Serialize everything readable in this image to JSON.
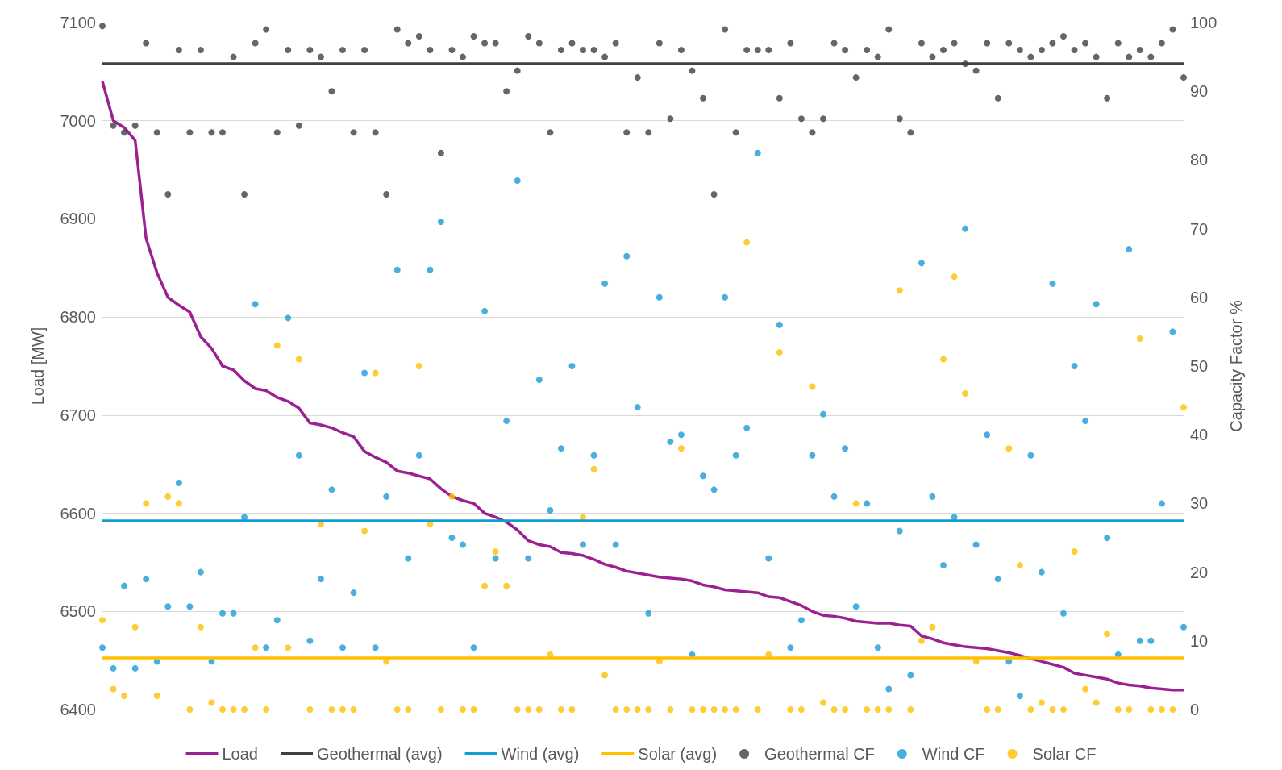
{
  "chart_data": {
    "type": "line",
    "ylabel": "Load [MW]",
    "y2label": "Capacity Factor %",
    "categories": [
      null,
      null,
      null,
      null,
      null,
      null,
      null,
      null,
      null,
      null,
      null,
      null,
      null,
      null,
      null,
      null,
      null,
      null,
      null,
      null,
      null,
      null,
      null,
      null,
      null,
      null,
      null,
      null,
      null,
      null,
      null,
      null,
      null,
      null,
      null,
      null,
      null,
      null,
      null,
      null,
      null,
      null,
      null,
      null,
      null,
      null,
      null,
      null,
      null,
      null,
      null,
      null,
      null,
      null,
      null,
      null,
      null,
      null,
      null,
      null,
      null,
      null,
      null,
      null,
      null,
      null,
      null,
      null,
      null,
      null,
      null,
      null,
      null,
      null,
      null,
      null,
      null,
      null,
      null,
      null,
      null,
      null,
      null,
      null,
      null,
      null,
      null,
      null,
      null,
      null,
      null,
      null,
      null,
      null,
      null,
      null,
      null,
      null,
      null,
      null
    ],
    "ylim": [
      6400,
      7100
    ],
    "yticks": [
      6400,
      6500,
      6600,
      6700,
      6800,
      6900,
      7000,
      7100
    ],
    "y2lim": [
      0,
      100
    ],
    "y2ticks": [
      0,
      10,
      20,
      30,
      40,
      50,
      60,
      70,
      80,
      90,
      100
    ],
    "grid": "y",
    "legend": "bottom",
    "series": [
      {
        "name": "Load",
        "color": "#9b2192",
        "marker": "none",
        "values": [
          7040,
          7000,
          6993,
          6980,
          6880,
          6845,
          6820,
          6812,
          6805,
          6780,
          6768,
          6750,
          6746,
          6735,
          6727,
          6725,
          6718,
          6714,
          6707,
          6692,
          6690,
          6687,
          6682,
          6678,
          6663,
          6657,
          6652,
          6643,
          6641,
          6638,
          6635,
          6625,
          6617,
          6613,
          6610,
          6600,
          6596,
          6591,
          6583,
          6572,
          6568,
          6566,
          6560,
          6559,
          6557,
          6553,
          6548,
          6545,
          6541,
          6539,
          6537,
          6535,
          6534,
          6533,
          6531,
          6527,
          6525,
          6522,
          6521,
          6520,
          6519,
          6515,
          6514,
          6510,
          6506,
          6500,
          6496,
          6495,
          6493,
          6490,
          6489,
          6488,
          6488,
          6486,
          6485,
          6475,
          6472,
          6468,
          6466,
          6464,
          6463,
          6462,
          6460,
          6458,
          6455,
          6452,
          6449,
          6446,
          6443,
          6437,
          6435,
          6433,
          6431,
          6427,
          6425,
          6424,
          6422,
          6421,
          6420,
          6420
        ]
      },
      {
        "name": "Geothermal CF",
        "type": "scatter",
        "axis": "y2",
        "color": "#404040",
        "marker": "circle",
        "values": [
          99.5,
          85,
          84,
          85,
          97,
          84,
          75,
          96,
          84,
          96,
          84,
          84,
          95,
          75,
          97,
          99,
          84,
          96,
          85,
          96,
          95,
          90,
          96,
          84,
          96,
          84,
          75,
          99,
          97,
          98,
          96,
          81,
          96,
          95,
          98,
          97,
          97,
          90,
          93,
          98,
          97,
          84,
          96,
          97,
          96,
          96,
          95,
          97,
          84,
          92,
          84,
          97,
          86,
          96,
          93,
          89,
          75,
          99,
          84,
          96,
          96,
          96,
          89,
          97,
          86,
          84,
          86,
          97,
          96,
          92,
          96,
          95,
          99,
          86,
          84,
          97,
          95,
          96,
          97,
          94,
          93,
          97,
          89,
          97,
          96,
          95,
          96,
          97,
          98,
          96,
          97,
          95,
          89,
          97,
          95,
          96,
          95,
          97,
          99,
          92
        ]
      },
      {
        "name": "Wind CF",
        "type": "scatter",
        "axis": "y2",
        "color": "#1a9bd7",
        "marker": "circle",
        "values": [
          9,
          6,
          18,
          6,
          19,
          7,
          15,
          33,
          15,
          20,
          7,
          14,
          14,
          28,
          59,
          9,
          13,
          57,
          37,
          10,
          19,
          32,
          9,
          17,
          49,
          9,
          31,
          64,
          22,
          37,
          64,
          71,
          25,
          24,
          9,
          58,
          22,
          42,
          77,
          22,
          48,
          29,
          38,
          50,
          24,
          37,
          62,
          24,
          66,
          44,
          14,
          60,
          39,
          40,
          8,
          34,
          32,
          60,
          37,
          41,
          81,
          22,
          56,
          9,
          13,
          37,
          43,
          31,
          38,
          15,
          30,
          9,
          3,
          26,
          5,
          65,
          31,
          21,
          28,
          70,
          24,
          40,
          19,
          7,
          2,
          37,
          20,
          62,
          14,
          50,
          42,
          59,
          25,
          8,
          67,
          10,
          10,
          30,
          55,
          12
        ]
      },
      {
        "name": "Solar CF",
        "type": "scatter",
        "axis": "y2",
        "color": "#ffc000",
        "marker": "circle",
        "values": [
          13,
          3,
          2,
          12,
          30,
          2,
          31,
          30,
          0,
          12,
          1,
          0,
          0,
          0,
          9,
          0,
          53,
          9,
          51,
          0,
          27,
          0,
          0,
          0,
          26,
          49,
          7,
          0,
          0,
          50,
          27,
          0,
          31,
          0,
          0,
          18,
          23,
          18,
          0,
          0,
          0,
          8,
          0,
          0,
          28,
          35,
          5,
          0,
          0,
          0,
          0,
          7,
          0,
          38,
          0,
          0,
          0,
          0,
          0,
          68,
          0,
          8,
          52,
          0,
          0,
          47,
          1,
          0,
          0,
          30,
          0,
          0,
          0,
          61,
          0,
          10,
          12,
          51,
          63,
          46,
          7,
          0,
          0,
          38,
          21,
          0,
          1,
          0,
          0,
          23,
          3,
          1,
          11,
          0,
          0,
          54,
          0,
          0,
          0,
          44
        ]
      }
    ],
    "ref_lines": [
      {
        "axis": "y2",
        "value": 94,
        "label": "Geothermal (avg)",
        "color": "#404040"
      },
      {
        "axis": "y2",
        "value": 27.5,
        "label": "Wind (avg)",
        "color": "#0f9ed5"
      },
      {
        "axis": "y2",
        "value": 7.5,
        "label": "Solar (avg)",
        "color": "#ffc000"
      }
    ]
  }
}
